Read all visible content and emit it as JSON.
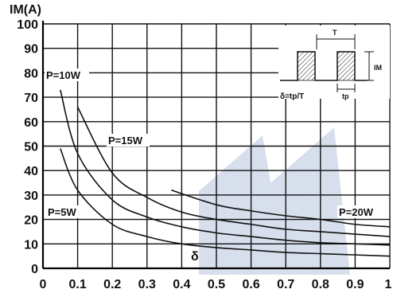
{
  "chart_data": {
    "type": "line",
    "ylabel": "IM(A)",
    "xlabel": "",
    "xlim": [
      0,
      1
    ],
    "ylim": [
      0,
      100
    ],
    "x_ticks": [
      "0",
      "0.1",
      "0.2",
      "0.3",
      "0.4",
      "0.5",
      "0.6",
      "0.7",
      "0.8",
      "0.9",
      "1"
    ],
    "y_ticks": [
      "0",
      "10",
      "20",
      "30",
      "40",
      "50",
      "60",
      "70",
      "80",
      "90",
      "100"
    ],
    "grid": true,
    "series": [
      {
        "name": "P=5W",
        "x": [
          0.05,
          0.1,
          0.2,
          0.3,
          0.4,
          0.5,
          0.6,
          0.7,
          0.8,
          0.9,
          1.0
        ],
        "y": [
          49,
          32,
          18,
          13,
          10,
          8.5,
          7.5,
          6.5,
          6,
          5.5,
          5
        ]
      },
      {
        "name": "P=10W",
        "x": [
          0.05,
          0.1,
          0.2,
          0.3,
          0.4,
          0.5,
          0.6,
          0.7,
          0.8,
          0.9,
          1.0
        ],
        "y": [
          73,
          47,
          28,
          21,
          17,
          14.5,
          13,
          11.5,
          10.5,
          10,
          9.5
        ]
      },
      {
        "name": "P=15W",
        "x": [
          0.1,
          0.2,
          0.3,
          0.4,
          0.5,
          0.6,
          0.7,
          0.8,
          0.9,
          1.0
        ],
        "y": [
          66,
          39,
          29,
          23,
          20,
          18,
          16,
          15,
          14,
          13
        ]
      },
      {
        "name": "P=20W",
        "x": [
          0.37,
          0.5,
          0.6,
          0.7,
          0.8,
          0.9,
          1.0
        ],
        "y": [
          32,
          26,
          23.5,
          21.5,
          20,
          18,
          17
        ]
      }
    ],
    "annotations": {
      "series_labels": [
        "P=10W",
        "P=15W",
        "P=5W",
        "P=20W"
      ],
      "delta_symbol": "δ",
      "inset": {
        "period": "T",
        "pulse": "tp",
        "amplitude": "IM",
        "formula": "δ=tp/T"
      }
    }
  }
}
